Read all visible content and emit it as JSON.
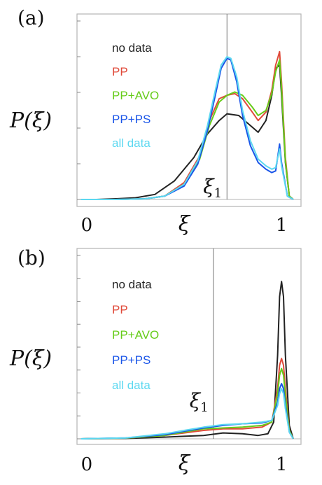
{
  "chart_data": [
    {
      "panel_label": "(a)",
      "type": "line",
      "ylabel": "P(ξ)",
      "xlabel": "ξ",
      "xlim": [
        -0.05,
        1.1
      ],
      "ylim": [
        0,
        1.0
      ],
      "xticks": [
        {
          "value": 0,
          "label": "0"
        },
        {
          "value": 1,
          "label": "1"
        }
      ],
      "vline": {
        "x": 0.72,
        "label": "ξ",
        "subscript": "1"
      },
      "legend": {
        "placement": "top-left",
        "entries": [
          "no data",
          "PP",
          "PP+AVO",
          "PP+PS",
          "all data"
        ]
      },
      "series": [
        {
          "name": "no data",
          "color": "#222222",
          "x": [
            -0.03,
            0.05,
            0.15,
            0.25,
            0.35,
            0.45,
            0.55,
            0.62,
            0.68,
            0.72,
            0.78,
            0.84,
            0.88,
            0.92,
            0.95,
            0.97,
            0.99,
            1.0,
            1.02,
            1.04,
            1.06
          ],
          "y": [
            0,
            0,
            0.004,
            0.01,
            0.03,
            0.11,
            0.25,
            0.39,
            0.47,
            0.51,
            0.5,
            0.44,
            0.4,
            0.47,
            0.62,
            0.78,
            0.8,
            0.62,
            0.22,
            0.02,
            0
          ]
        },
        {
          "name": "PP",
          "color": "#e04a3a",
          "x": [
            -0.03,
            0.15,
            0.3,
            0.4,
            0.5,
            0.58,
            0.63,
            0.68,
            0.72,
            0.76,
            0.8,
            0.85,
            0.88,
            0.92,
            0.95,
            0.97,
            0.99,
            1.0,
            1.02,
            1.04,
            1.06
          ],
          "y": [
            0,
            0,
            0.004,
            0.02,
            0.1,
            0.26,
            0.47,
            0.6,
            0.62,
            0.63,
            0.6,
            0.52,
            0.47,
            0.52,
            0.65,
            0.8,
            0.88,
            0.7,
            0.25,
            0.02,
            0
          ]
        },
        {
          "name": "PP+AVO",
          "color": "#66cc1a",
          "x": [
            -0.03,
            0.15,
            0.3,
            0.4,
            0.5,
            0.58,
            0.63,
            0.68,
            0.72,
            0.76,
            0.8,
            0.85,
            0.88,
            0.92,
            0.95,
            0.97,
            0.99,
            1.0,
            1.02,
            1.04,
            1.06
          ],
          "y": [
            0,
            0,
            0.004,
            0.02,
            0.09,
            0.24,
            0.44,
            0.58,
            0.62,
            0.64,
            0.62,
            0.55,
            0.5,
            0.53,
            0.63,
            0.76,
            0.83,
            0.66,
            0.23,
            0.02,
            0
          ]
        },
        {
          "name": "PP+PS",
          "color": "#1a55e8",
          "x": [
            -0.03,
            0.15,
            0.3,
            0.4,
            0.5,
            0.57,
            0.62,
            0.66,
            0.69,
            0.72,
            0.74,
            0.77,
            0.8,
            0.84,
            0.88,
            0.92,
            0.95,
            0.97,
            0.99,
            1.0,
            1.03,
            1.06
          ],
          "y": [
            0,
            0,
            0.004,
            0.02,
            0.08,
            0.21,
            0.41,
            0.62,
            0.78,
            0.84,
            0.83,
            0.7,
            0.5,
            0.32,
            0.22,
            0.18,
            0.16,
            0.17,
            0.33,
            0.22,
            0.02,
            0
          ]
        },
        {
          "name": "all data",
          "color": "#5cd8f0",
          "x": [
            -0.03,
            0.15,
            0.3,
            0.4,
            0.5,
            0.57,
            0.62,
            0.66,
            0.69,
            0.72,
            0.74,
            0.77,
            0.8,
            0.84,
            0.88,
            0.92,
            0.95,
            0.97,
            0.99,
            1.0,
            1.03,
            1.06
          ],
          "y": [
            0,
            0,
            0.004,
            0.02,
            0.09,
            0.23,
            0.44,
            0.65,
            0.8,
            0.85,
            0.84,
            0.73,
            0.53,
            0.35,
            0.24,
            0.2,
            0.18,
            0.19,
            0.3,
            0.2,
            0.02,
            0
          ]
        }
      ]
    },
    {
      "panel_label": "(b)",
      "type": "line",
      "ylabel": "P(ξ)",
      "xlabel": "ξ",
      "xlim": [
        -0.05,
        1.1
      ],
      "ylim": [
        0,
        1.0
      ],
      "xticks": [
        {
          "value": 0,
          "label": "0"
        },
        {
          "value": 1,
          "label": "1"
        }
      ],
      "vline": {
        "x": 0.65,
        "label": "ξ",
        "subscript": "1"
      },
      "legend": {
        "placement": "top-left",
        "entries": [
          "no data",
          "PP",
          "PP+AVO",
          "PP+PS",
          "all data"
        ]
      },
      "series": [
        {
          "name": "no data",
          "color": "#222222",
          "x": [
            -0.03,
            0.2,
            0.4,
            0.5,
            0.6,
            0.7,
            0.8,
            0.88,
            0.93,
            0.96,
            0.98,
            0.99,
            1.0,
            1.01,
            1.02,
            1.04,
            1.06
          ],
          "y": [
            0,
            0.002,
            0.01,
            0.015,
            0.02,
            0.035,
            0.03,
            0.02,
            0.03,
            0.1,
            0.5,
            0.85,
            0.94,
            0.85,
            0.5,
            0.08,
            0
          ]
        },
        {
          "name": "PP",
          "color": "#e04a3a",
          "x": [
            -0.03,
            0.2,
            0.4,
            0.5,
            0.6,
            0.7,
            0.8,
            0.9,
            0.95,
            0.98,
            0.99,
            1.0,
            1.01,
            1.02,
            1.04,
            1.06
          ],
          "y": [
            0,
            0.004,
            0.02,
            0.035,
            0.05,
            0.06,
            0.06,
            0.07,
            0.1,
            0.3,
            0.44,
            0.48,
            0.44,
            0.3,
            0.05,
            0
          ]
        },
        {
          "name": "PP+AVO",
          "color": "#66cc1a",
          "x": [
            -0.03,
            0.2,
            0.4,
            0.5,
            0.6,
            0.7,
            0.8,
            0.9,
            0.95,
            0.98,
            0.99,
            1.0,
            1.01,
            1.02,
            1.04,
            1.06
          ],
          "y": [
            0,
            0.004,
            0.02,
            0.04,
            0.06,
            0.065,
            0.07,
            0.08,
            0.1,
            0.27,
            0.38,
            0.42,
            0.38,
            0.26,
            0.05,
            0
          ]
        },
        {
          "name": "PP+PS",
          "color": "#1a55e8",
          "x": [
            -0.03,
            0.2,
            0.4,
            0.5,
            0.6,
            0.7,
            0.8,
            0.9,
            0.95,
            0.98,
            0.99,
            1.0,
            1.01,
            1.02,
            1.04,
            1.06
          ],
          "y": [
            0,
            0.005,
            0.025,
            0.045,
            0.065,
            0.08,
            0.09,
            0.095,
            0.11,
            0.22,
            0.3,
            0.33,
            0.3,
            0.2,
            0.04,
            0
          ]
        },
        {
          "name": "all data",
          "color": "#5cd8f0",
          "x": [
            -0.03,
            0.2,
            0.4,
            0.5,
            0.6,
            0.7,
            0.8,
            0.9,
            0.95,
            0.98,
            0.99,
            1.0,
            1.01,
            1.02,
            1.04,
            1.06
          ],
          "y": [
            0,
            0.005,
            0.03,
            0.05,
            0.07,
            0.085,
            0.09,
            0.1,
            0.11,
            0.2,
            0.27,
            0.3,
            0.27,
            0.18,
            0.04,
            0
          ]
        }
      ]
    }
  ]
}
